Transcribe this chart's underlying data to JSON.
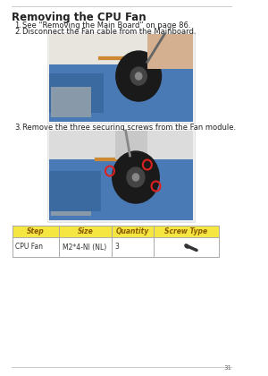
{
  "title": "Removing the CPU Fan",
  "steps": [
    "See “Removing the Main Board” on page 86.",
    "Disconnect the Fan cable from the Mainboard.",
    "Remove the three securing screws from the Fan module."
  ],
  "table_headers": [
    "Step",
    "Size",
    "Quantity",
    "Screw Type"
  ],
  "table_header_bg": "#F5E642",
  "table_header_text": "#8B5A00",
  "table_row": [
    "CPU Fan",
    "M2*4-NI (NL)",
    "3",
    ""
  ],
  "table_border_color": "#AAAAAA",
  "bg_color": "#FFFFFF",
  "text_color": "#222222",
  "footer_text": "31",
  "page_line_color": "#CCCCCC",
  "img1_bg": "#C8D8E8",
  "img2_bg": "#C8D8E8"
}
